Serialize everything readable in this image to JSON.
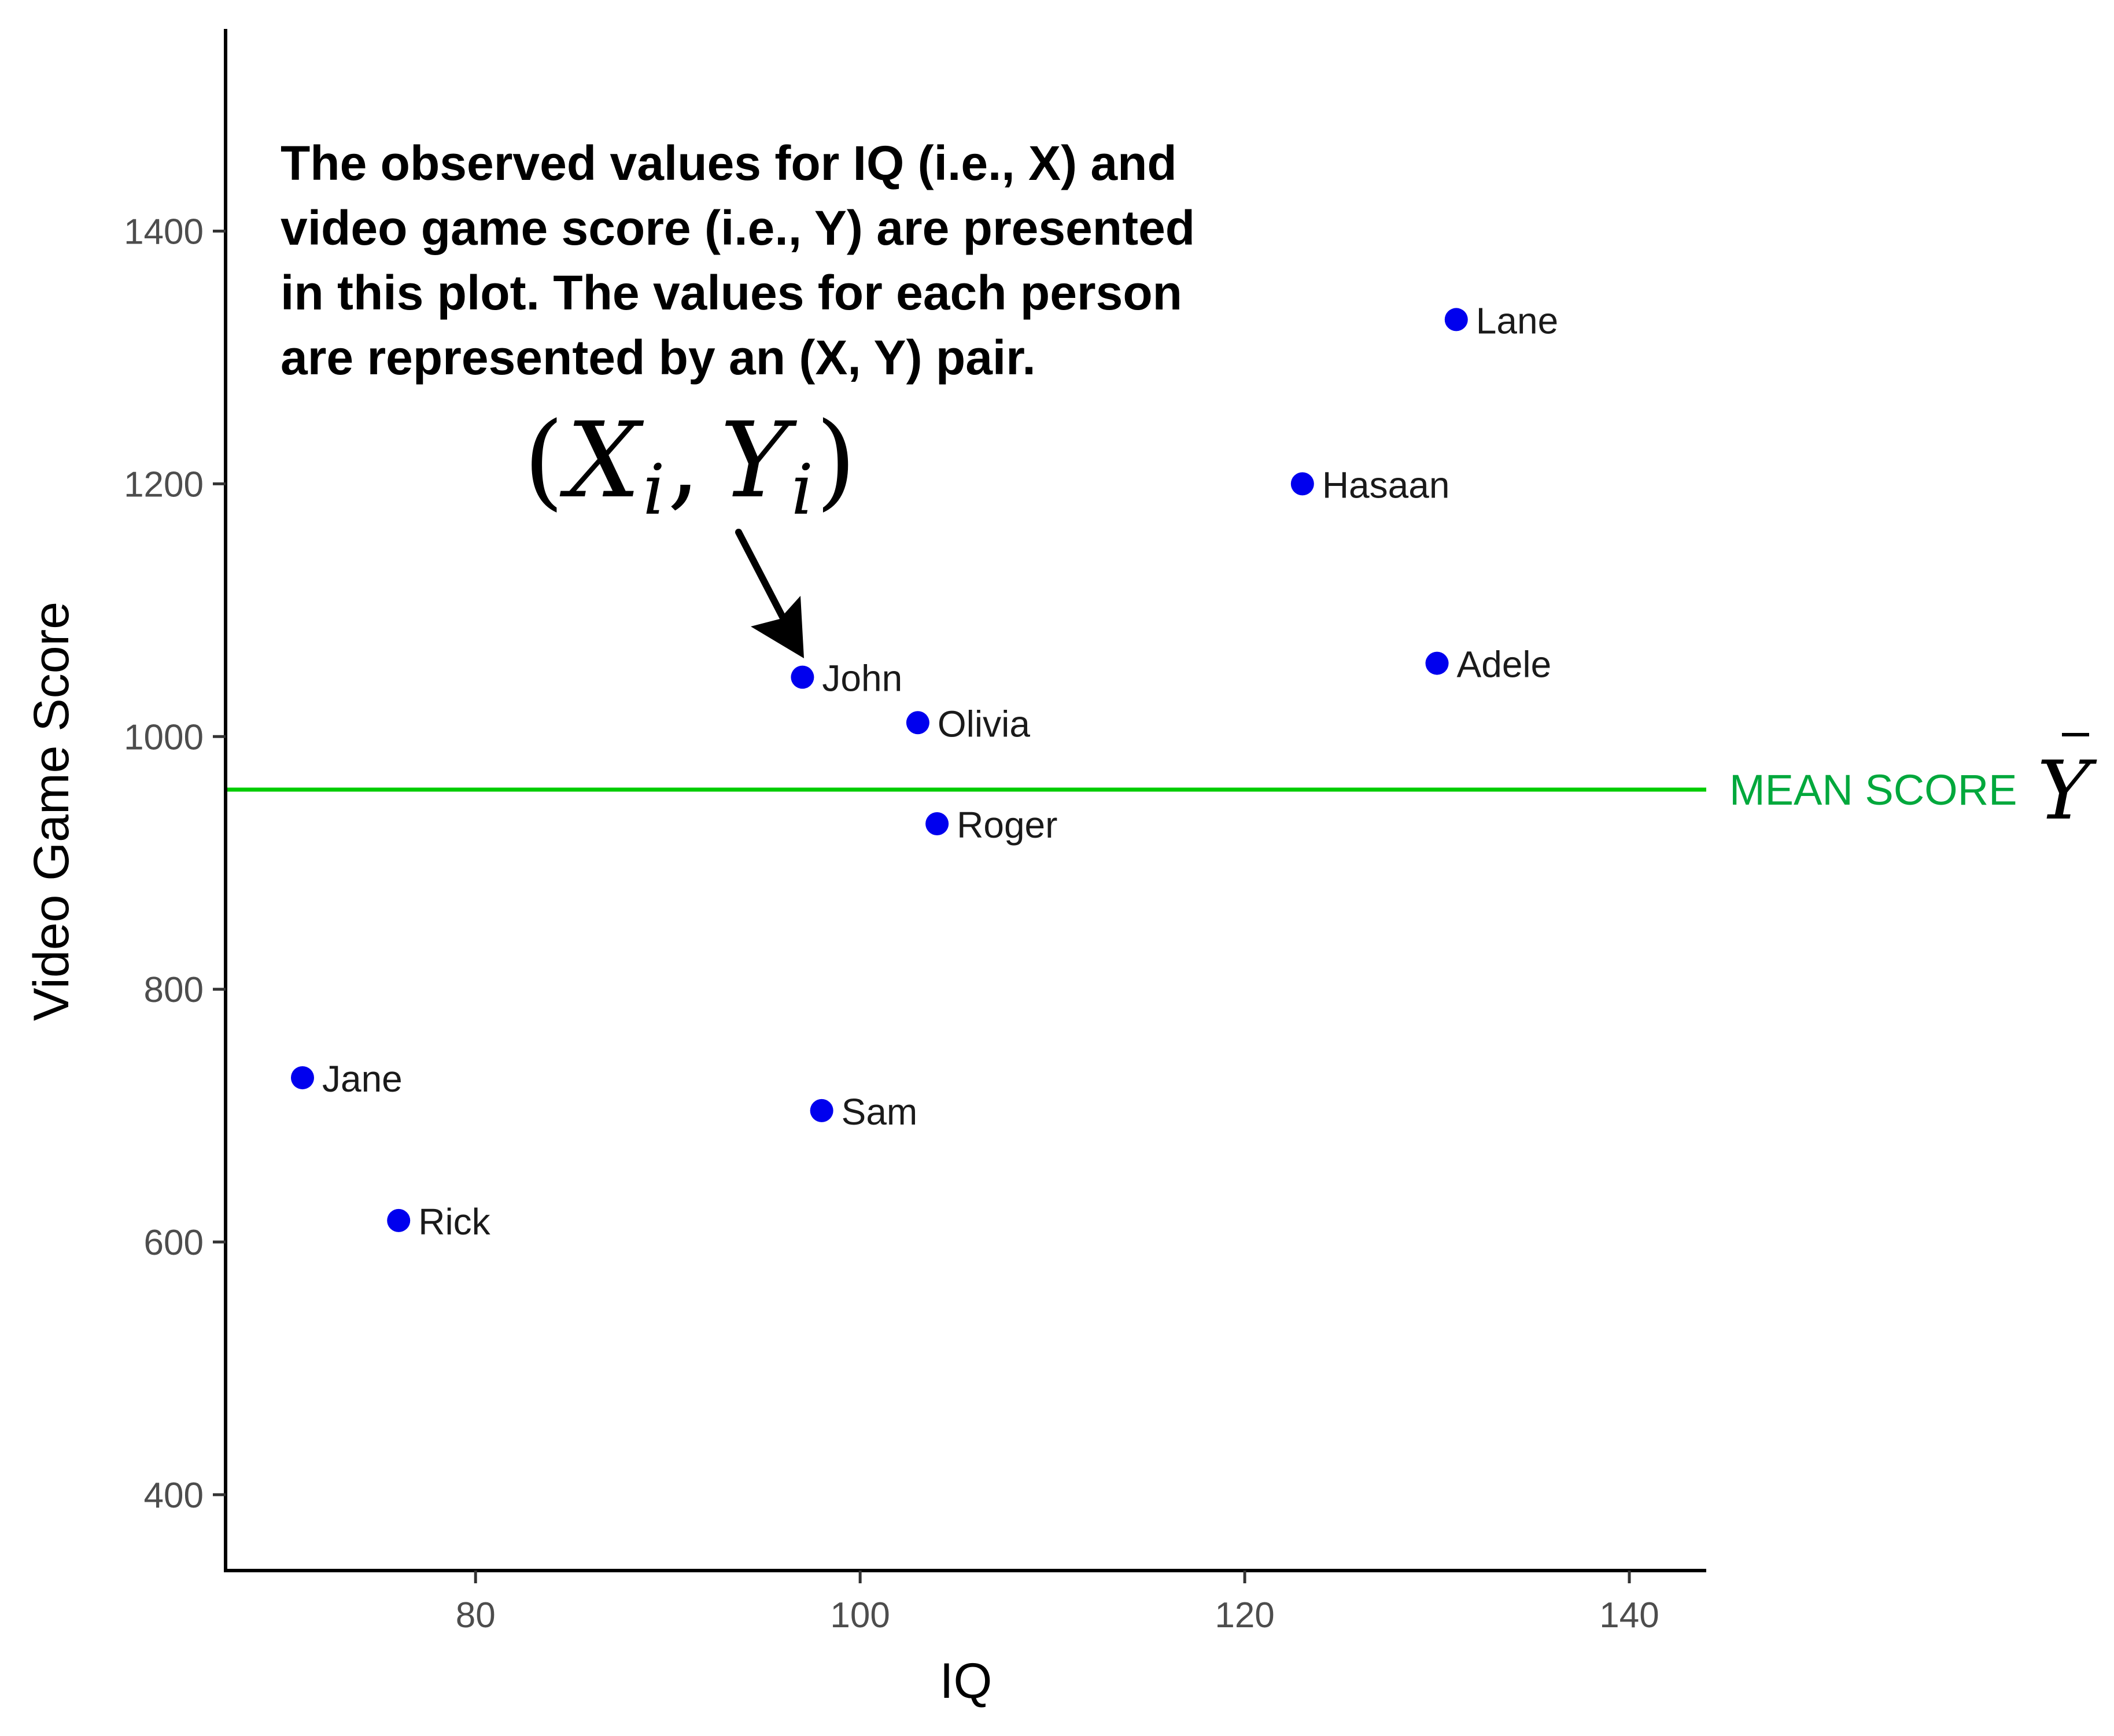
{
  "chart_data": {
    "type": "scatter",
    "xlabel": "IQ",
    "ylabel": "Video Game Score",
    "xlim": [
      67,
      144
    ],
    "ylim": [
      340,
      1560
    ],
    "x_ticks": [
      80,
      100,
      120,
      140
    ],
    "y_ticks": [
      400,
      600,
      800,
      1000,
      1200,
      1400
    ],
    "point_color": "#0000ee",
    "points": [
      {
        "label": "Lane",
        "x": 131,
        "y": 1330
      },
      {
        "label": "Hasaan",
        "x": 123,
        "y": 1200
      },
      {
        "label": "Adele",
        "x": 130,
        "y": 1058
      },
      {
        "label": "John",
        "x": 97,
        "y": 1047
      },
      {
        "label": "Olivia",
        "x": 103,
        "y": 1011
      },
      {
        "label": "Roger",
        "x": 104,
        "y": 931
      },
      {
        "label": "Jane",
        "x": 71,
        "y": 730
      },
      {
        "label": "Sam",
        "x": 98,
        "y": 704
      },
      {
        "label": "Rick",
        "x": 76,
        "y": 617
      }
    ],
    "mean_line": {
      "y": 958,
      "label": "MEAN SCORE",
      "symbol": "Y",
      "color": "#00cc00",
      "label_color": "#00a83c"
    },
    "annotation": {
      "lines": [
        "The observed values for IQ (i.e., X) and",
        "video game score (i.e., Y) are presented",
        "in this plot. The values for each person",
        "are represented by an (X, Y) pair."
      ],
      "pair": {
        "open": "(",
        "x": "X",
        "sub1": "i",
        "comma": ",",
        "y": "Y",
        "sub2": "i",
        "close": ")"
      },
      "points_to": "John"
    },
    "grid": false,
    "legend": "none"
  }
}
